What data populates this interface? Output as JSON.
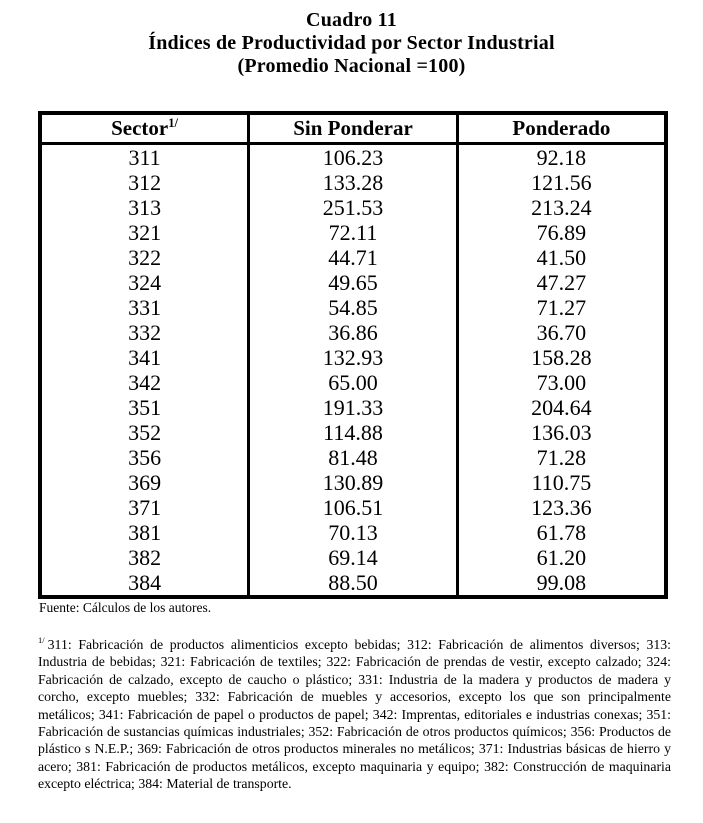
{
  "document": {
    "title": {
      "line1": "Cuadro 11",
      "line2": "Índices de Productividad por Sector Industrial",
      "line3": "(Promedio Nacional =100)"
    },
    "table": {
      "columns": [
        {
          "label": "Sector",
          "superscript": "1/"
        },
        {
          "label": "Sin Ponderar"
        },
        {
          "label": "Ponderado"
        }
      ],
      "rows": [
        [
          "311",
          "106.23",
          "92.18"
        ],
        [
          "312",
          "133.28",
          "121.56"
        ],
        [
          "313",
          "251.53",
          "213.24"
        ],
        [
          "321",
          "72.11",
          "76.89"
        ],
        [
          "322",
          "44.71",
          "41.50"
        ],
        [
          "324",
          "49.65",
          "47.27"
        ],
        [
          "331",
          "54.85",
          "71.27"
        ],
        [
          "332",
          "36.86",
          "36.70"
        ],
        [
          "341",
          "132.93",
          "158.28"
        ],
        [
          "342",
          "65.00",
          "73.00"
        ],
        [
          "351",
          "191.33",
          "204.64"
        ],
        [
          "352",
          "114.88",
          "136.03"
        ],
        [
          "356",
          "81.48",
          "71.28"
        ],
        [
          "369",
          "130.89",
          "110.75"
        ],
        [
          "371",
          "106.51",
          "123.36"
        ],
        [
          "381",
          "70.13",
          "61.78"
        ],
        [
          "382",
          "69.14",
          "61.20"
        ],
        [
          "384",
          "88.50",
          "99.08"
        ]
      ]
    },
    "source_note": "Fuente: Cálculos de los autores.",
    "footnote": {
      "marker": "1/",
      "text": "311: Fabricación de productos alimenticios excepto bebidas; 312: Fabricación de alimentos diversos; 313: Industria de bebidas; 321: Fabricación de textiles; 322: Fabricación de prendas de vestir, excepto calzado; 324: Fabricación de calzado, excepto de caucho o plástico; 331: Industria de la madera y productos de madera y corcho, excepto muebles; 332: Fabricación de muebles y accesorios, excepto los que son principalmente metálicos; 341: Fabricación de papel o productos de papel;  342: Imprentas, editoriales e industrias conexas; 351: Fabricación de sustancias químicas industriales; 352: Fabricación de otros productos químicos; 356: Productos de plástico s N.E.P.; 369: Fabricación de otros productos minerales no metálicos; 371: Industrias básicas de hierro y acero; 381:  Fabricación de productos metálicos, excepto maquinaria y equipo; 382: Construcción de maquinaria excepto eléctrica; 384: Material de transporte."
    },
    "colors": {
      "ink": "#000000",
      "paper": "#ffffff"
    }
  }
}
